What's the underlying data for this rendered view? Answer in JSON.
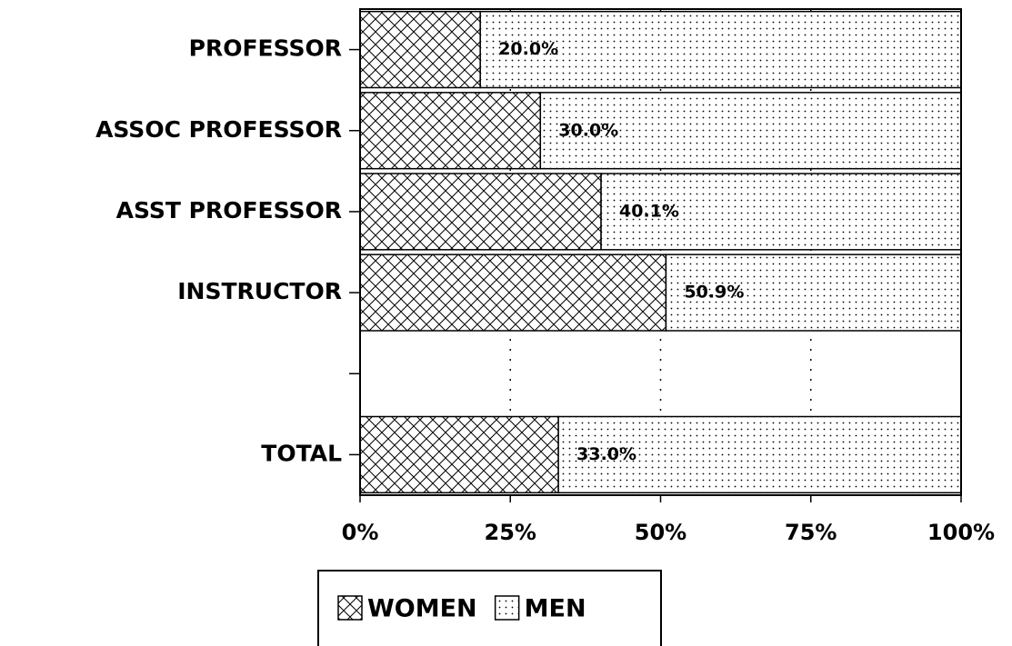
{
  "chart_data": {
    "type": "stacked-barh",
    "categories": [
      "PROFESSOR",
      "ASSOC PROFESSOR",
      "ASST PROFESSOR",
      "INSTRUCTOR",
      null,
      "TOTAL"
    ],
    "series": [
      {
        "name": "WOMEN",
        "color": "#000000",
        "pattern": "crosshatch",
        "values": [
          20.0,
          30.0,
          40.1,
          50.9,
          null,
          33.0
        ],
        "value_labels": [
          "20.0%",
          "30.0%",
          "40.1%",
          "50.9%",
          null,
          "33.0%"
        ]
      },
      {
        "name": "MEN",
        "color": "#000000",
        "pattern": "dots",
        "values": [
          80.0,
          70.0,
          59.9,
          49.1,
          null,
          67.0
        ]
      }
    ],
    "xlim": [
      0,
      100
    ],
    "xticks": [
      {
        "value": 0,
        "label": "0%"
      },
      {
        "value": 25,
        "label": "25%"
      },
      {
        "value": 50,
        "label": "50%"
      },
      {
        "value": 75,
        "label": "75%"
      },
      {
        "value": 100,
        "label": "100%"
      }
    ],
    "grid": true,
    "legend": "bottom"
  }
}
